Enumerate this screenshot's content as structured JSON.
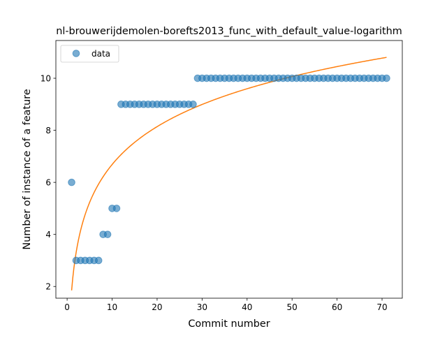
{
  "chart_data": {
    "type": "scatter",
    "title": "nl-brouwerijdemolen-borefts2013_func_with_default_value-logarithm",
    "xlabel": "Commit number",
    "ylabel": "Number of instance of a feature",
    "xlim": [
      -2.5,
      74.5
    ],
    "ylim": [
      1.55,
      11.45
    ],
    "xticks": [
      0,
      10,
      20,
      30,
      40,
      50,
      60,
      70
    ],
    "yticks": [
      2,
      4,
      6,
      8,
      10
    ],
    "grid": false,
    "legend_position": "upper-left",
    "legend": [
      {
        "label": "data",
        "marker": "circle",
        "color": "#1f77b4"
      }
    ],
    "series": [
      {
        "name": "data",
        "kind": "scatter",
        "color": "#1f77b4",
        "x": [
          1,
          2,
          3,
          4,
          5,
          6,
          7,
          8,
          9,
          10,
          11,
          12,
          13,
          14,
          15,
          16,
          17,
          18,
          19,
          20,
          21,
          22,
          23,
          24,
          25,
          26,
          27,
          28,
          29,
          30,
          31,
          32,
          33,
          34,
          35,
          36,
          37,
          38,
          39,
          40,
          41,
          42,
          43,
          44,
          45,
          46,
          47,
          48,
          49,
          50,
          51,
          52,
          53,
          54,
          55,
          56,
          57,
          58,
          59,
          60,
          61,
          62,
          63,
          64,
          65,
          66,
          67,
          68,
          69,
          70,
          71
        ],
        "y": [
          6,
          3,
          3,
          3,
          3,
          3,
          3,
          4,
          4,
          5,
          5,
          9,
          9,
          9,
          9,
          9,
          9,
          9,
          9,
          9,
          9,
          9,
          9,
          9,
          9,
          9,
          9,
          9,
          10,
          10,
          10,
          10,
          10,
          10,
          10,
          10,
          10,
          10,
          10,
          10,
          10,
          10,
          10,
          10,
          10,
          10,
          10,
          10,
          10,
          10,
          10,
          10,
          10,
          10,
          10,
          10,
          10,
          10,
          10,
          10,
          10,
          10,
          10,
          10,
          10,
          10,
          10,
          10,
          10,
          10,
          10
        ]
      },
      {
        "kind": "line",
        "color": "#ff7f0e",
        "function": "logarithmic",
        "coefficients": {
          "a": 1.85,
          "b": 2.1
        },
        "x_range": [
          1,
          71
        ]
      }
    ]
  }
}
